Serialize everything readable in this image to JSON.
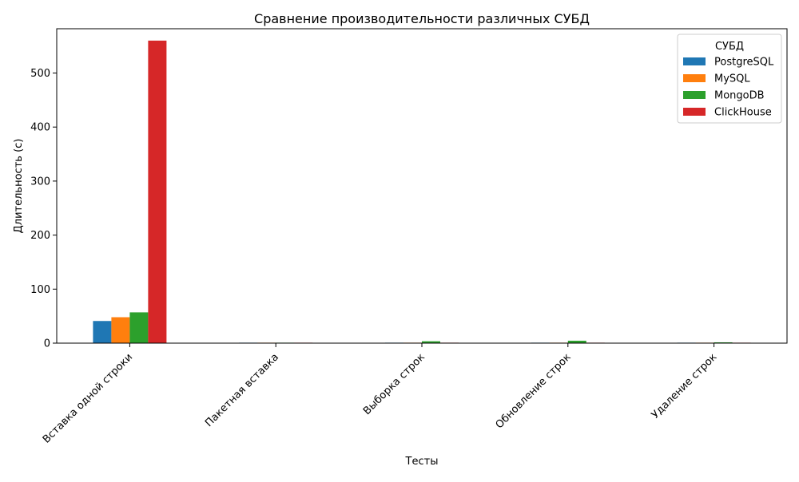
{
  "chart_data": {
    "type": "bar",
    "title": "Сравнение производительности различных СУБД",
    "xlabel": "Тесты",
    "ylabel": "Длительность (с)",
    "categories": [
      "Вставка одной строки",
      "Пакетная вставка",
      "Выборка строк",
      "Обновление строк",
      "Удаление строк"
    ],
    "series": [
      {
        "name": "PostgreSQL",
        "color": "#1f77b4",
        "values": [
          41,
          0.3,
          0.4,
          0.4,
          0.3
        ]
      },
      {
        "name": "MySQL",
        "color": "#ff7f0e",
        "values": [
          48,
          0.3,
          0.5,
          0.5,
          0.3
        ]
      },
      {
        "name": "MongoDB",
        "color": "#2ca02c",
        "values": [
          57,
          0.5,
          3.5,
          4.5,
          1.5
        ]
      },
      {
        "name": "ClickHouse",
        "color": "#d62728",
        "values": [
          560,
          0.2,
          0.3,
          0.3,
          0.2
        ]
      }
    ],
    "ylim": [
      0,
      582
    ],
    "yticks": [
      0,
      100,
      200,
      300,
      400,
      500
    ],
    "legend": {
      "title": "СУБД",
      "position": "top-right"
    },
    "grid": false
  }
}
